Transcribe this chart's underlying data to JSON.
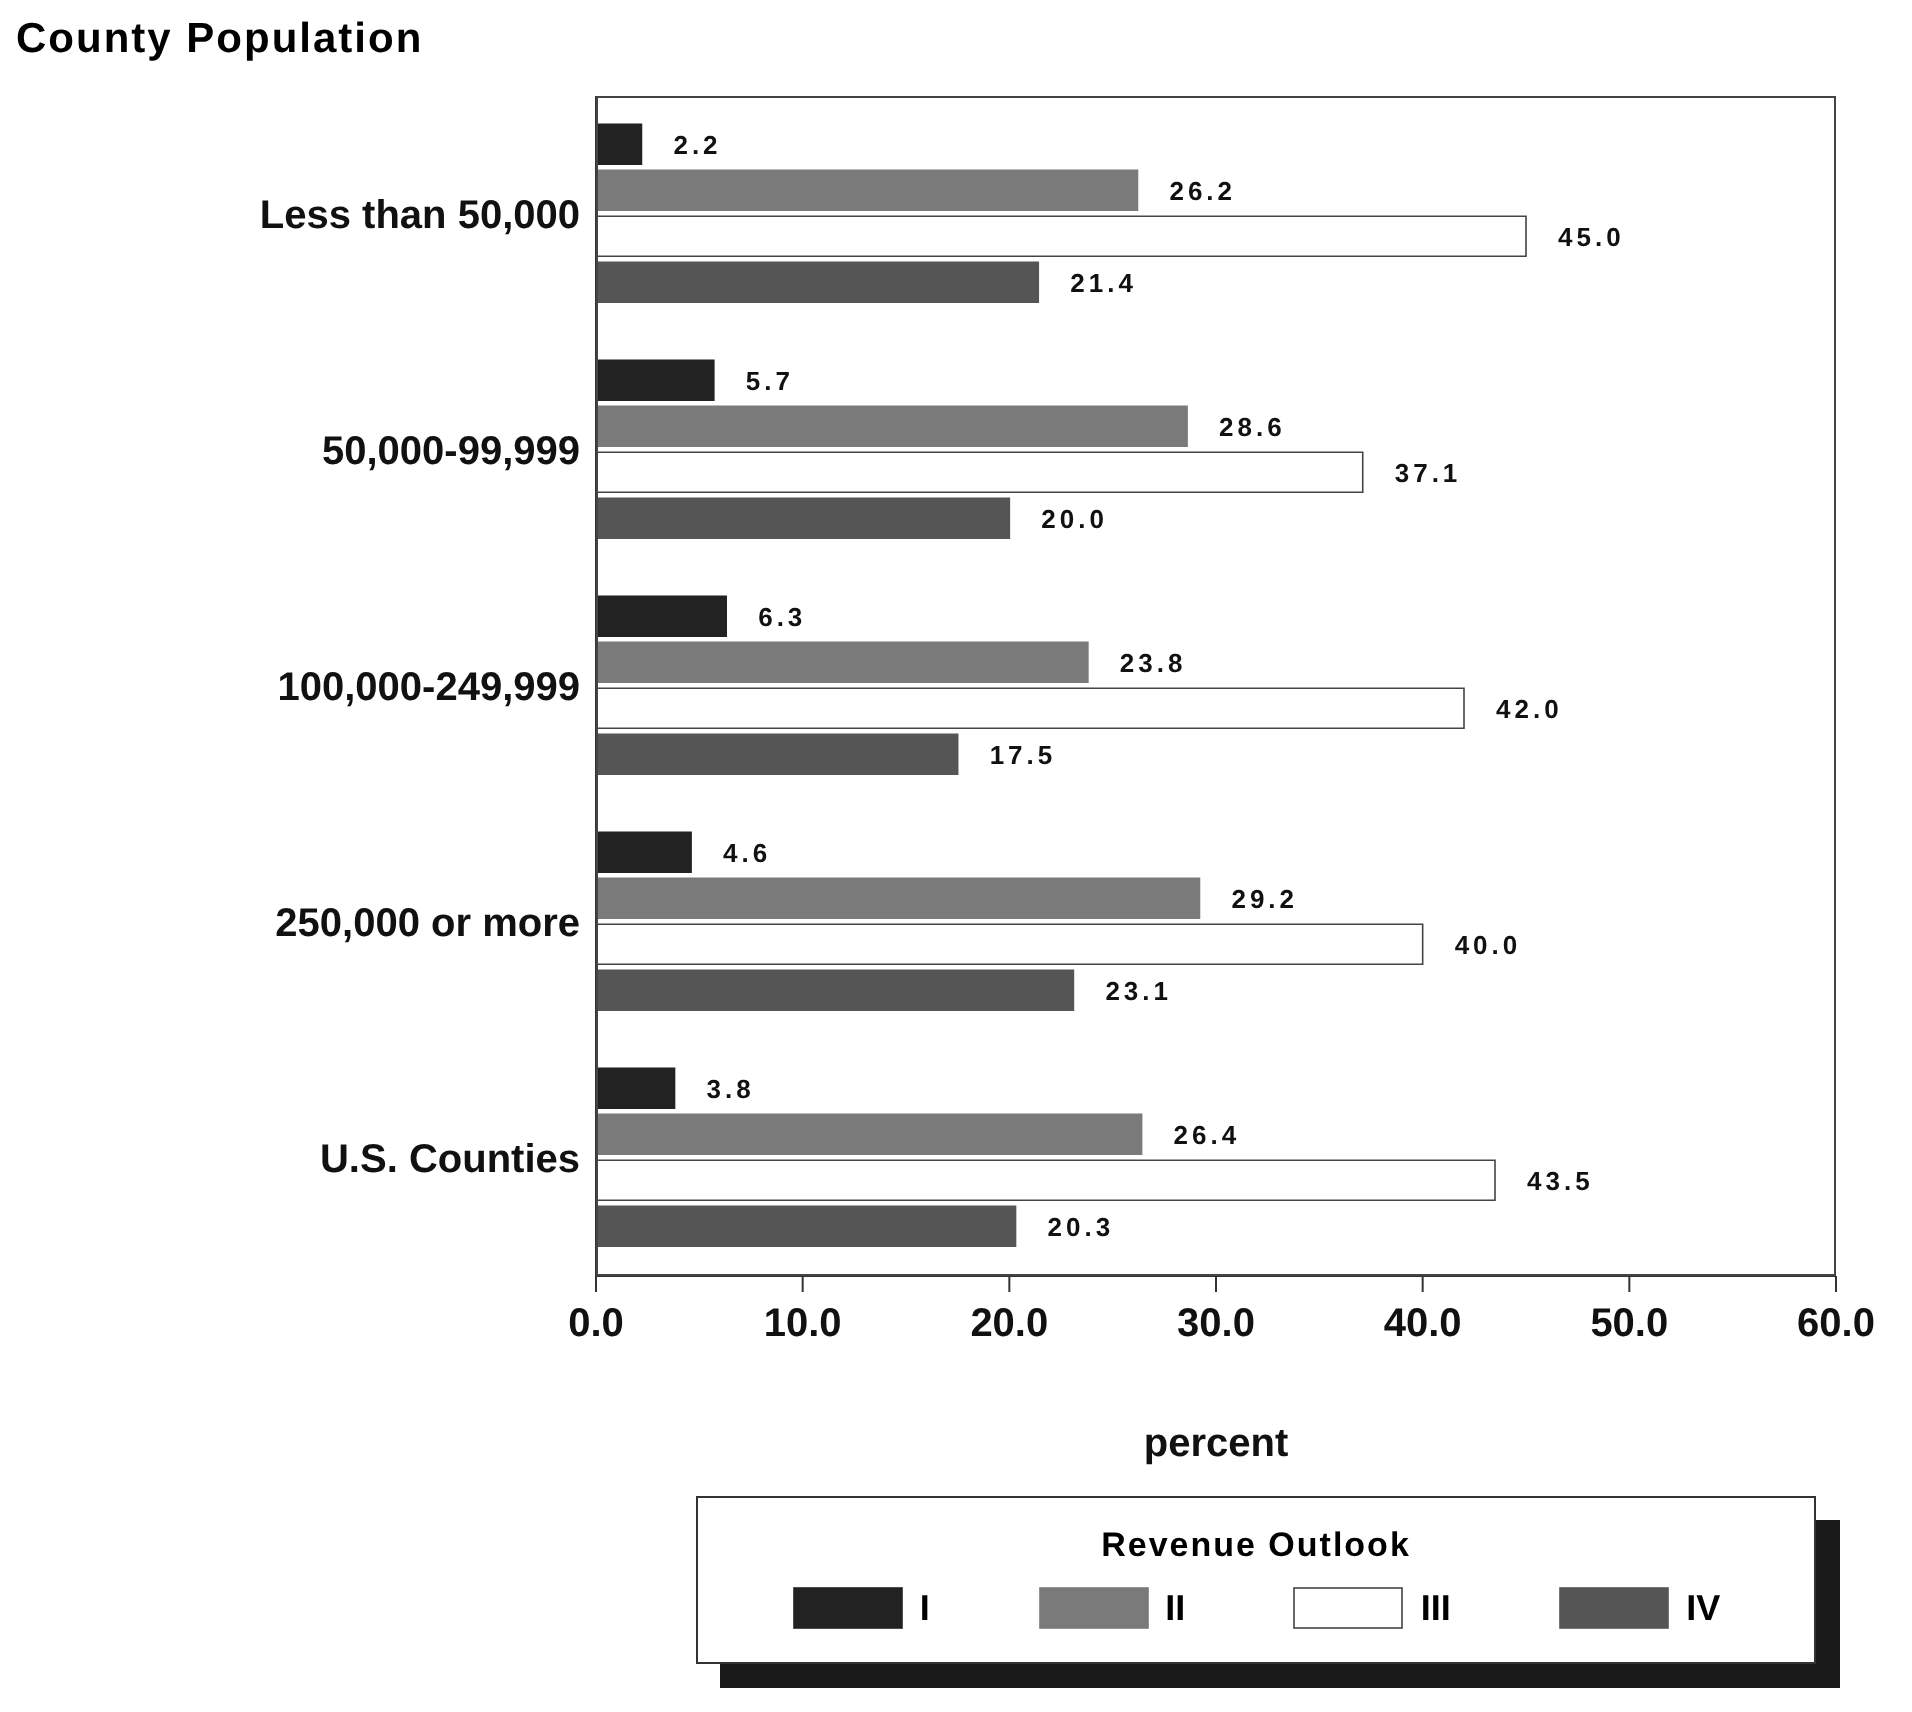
{
  "chart_data": {
    "type": "bar",
    "orientation": "horizontal",
    "title": "County Population",
    "xlabel": "percent",
    "legend_title": "Revenue Outlook",
    "legend": "bottom",
    "grid": false,
    "categories": [
      "Less than 50,000",
      "50,000-99,999",
      "100,000-249,999",
      "250,000 or more",
      "U.S. Counties"
    ],
    "xlim": [
      0,
      60
    ],
    "xticks": [
      {
        "value": 0,
        "label": "0.0"
      },
      {
        "value": 10,
        "label": "10.0"
      },
      {
        "value": 20,
        "label": "20.0"
      },
      {
        "value": 30,
        "label": "30.0"
      },
      {
        "value": 40,
        "label": "40.0"
      },
      {
        "value": 50,
        "label": "50.0"
      },
      {
        "value": 60,
        "label": "60.0"
      }
    ],
    "series": [
      {
        "name": "I",
        "color": "#222222",
        "values": [
          2.2,
          5.7,
          6.3,
          4.6,
          3.8
        ],
        "value_labels": [
          "2.2",
          "5.7",
          "6.3",
          "4.6",
          "3.8"
        ]
      },
      {
        "name": "II",
        "color": "#7a7a7a",
        "values": [
          26.2,
          28.6,
          23.8,
          29.2,
          26.4
        ],
        "value_labels": [
          "26.2",
          "28.6",
          "23.8",
          "29.2",
          "26.4"
        ]
      },
      {
        "name": "III",
        "color": "#ffffff",
        "values": [
          45.0,
          37.1,
          42.0,
          40.0,
          43.5
        ],
        "value_labels": [
          "45.0",
          "37.1",
          "42.0",
          "40.0",
          "43.5"
        ]
      },
      {
        "name": "IV",
        "color": "#555555",
        "values": [
          21.4,
          20.0,
          17.5,
          23.1,
          20.3
        ],
        "value_labels": [
          "21.4",
          "20.0",
          "17.5",
          "23.1",
          "20.3"
        ]
      }
    ]
  }
}
